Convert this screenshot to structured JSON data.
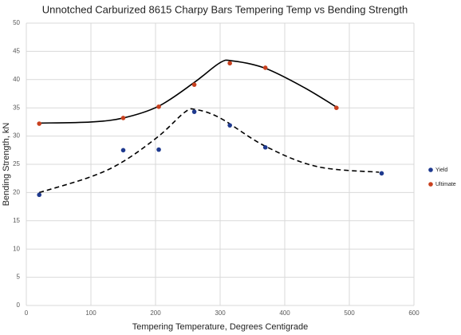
{
  "chart_data": {
    "type": "scatter",
    "title": "Unnotched Carburized 8615 Charpy Bars Tempering Temp vs Bending Strength",
    "x_label": "Tempering Temperature, Degrees Centigrade",
    "y_label": "Bending Strength, kN",
    "xlim": [
      0,
      600
    ],
    "xticks": [
      0,
      100,
      200,
      300,
      400,
      500,
      600
    ],
    "ylim": [
      0,
      50
    ],
    "yticks": [
      0,
      5,
      10,
      15,
      20,
      25,
      30,
      35,
      40,
      45,
      50
    ],
    "grid": true,
    "legend": "right",
    "series": [
      {
        "name": "Yield",
        "color": "#1f3a8f",
        "x": [
          20,
          150,
          205,
          260,
          315,
          370,
          550
        ],
        "values": [
          19.6,
          27.5,
          27.6,
          34.3,
          31.9,
          28,
          23.4
        ],
        "trendline": {
          "style": "dashed",
          "x": [
            20,
            100,
            150,
            205,
            245,
            262,
            300,
            370,
            450,
            546
          ],
          "values": [
            20,
            22.8,
            25.5,
            30,
            34.2,
            34.7,
            33.2,
            28.2,
            24.6,
            23.6
          ]
        }
      },
      {
        "name": "Ultimate",
        "color": "#c8401e",
        "x": [
          20,
          150,
          205,
          260,
          315,
          370,
          480
        ],
        "values": [
          32.2,
          33.2,
          35.2,
          39.1,
          42.9,
          42.1,
          35
        ],
        "trendline": {
          "style": "solid",
          "x": [
            20,
            100,
            150,
            205,
            260,
            300,
            320,
            370,
            430,
            482
          ],
          "values": [
            32.3,
            32.5,
            33.2,
            35.3,
            39.5,
            43,
            43.3,
            42,
            38.6,
            35
          ]
        }
      }
    ]
  }
}
